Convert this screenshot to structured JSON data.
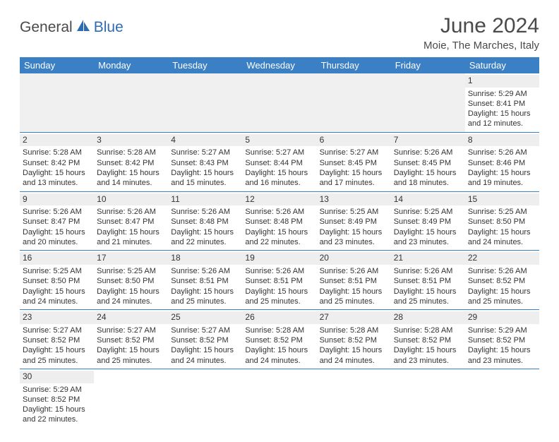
{
  "logo": {
    "general": "General",
    "blue": "Blue"
  },
  "title": "June 2024",
  "location": "Moie, The Marches, Italy",
  "colors": {
    "header_bg": "#3b7fc4",
    "header_text": "#ffffff",
    "daynum_bg": "#eeeeee",
    "border": "#3b7fc4",
    "text": "#333333",
    "logo_gray": "#4a4a4a",
    "logo_blue": "#2d6cb0"
  },
  "weekdays": [
    "Sunday",
    "Monday",
    "Tuesday",
    "Wednesday",
    "Thursday",
    "Friday",
    "Saturday"
  ],
  "weeks": [
    [
      null,
      null,
      null,
      null,
      null,
      null,
      {
        "n": "1",
        "sr": "5:29 AM",
        "ss": "8:41 PM",
        "dl": "15 hours and 12 minutes."
      }
    ],
    [
      {
        "n": "2",
        "sr": "5:28 AM",
        "ss": "8:42 PM",
        "dl": "15 hours and 13 minutes."
      },
      {
        "n": "3",
        "sr": "5:28 AM",
        "ss": "8:42 PM",
        "dl": "15 hours and 14 minutes."
      },
      {
        "n": "4",
        "sr": "5:27 AM",
        "ss": "8:43 PM",
        "dl": "15 hours and 15 minutes."
      },
      {
        "n": "5",
        "sr": "5:27 AM",
        "ss": "8:44 PM",
        "dl": "15 hours and 16 minutes."
      },
      {
        "n": "6",
        "sr": "5:27 AM",
        "ss": "8:45 PM",
        "dl": "15 hours and 17 minutes."
      },
      {
        "n": "7",
        "sr": "5:26 AM",
        "ss": "8:45 PM",
        "dl": "15 hours and 18 minutes."
      },
      {
        "n": "8",
        "sr": "5:26 AM",
        "ss": "8:46 PM",
        "dl": "15 hours and 19 minutes."
      }
    ],
    [
      {
        "n": "9",
        "sr": "5:26 AM",
        "ss": "8:47 PM",
        "dl": "15 hours and 20 minutes."
      },
      {
        "n": "10",
        "sr": "5:26 AM",
        "ss": "8:47 PM",
        "dl": "15 hours and 21 minutes."
      },
      {
        "n": "11",
        "sr": "5:26 AM",
        "ss": "8:48 PM",
        "dl": "15 hours and 22 minutes."
      },
      {
        "n": "12",
        "sr": "5:26 AM",
        "ss": "8:48 PM",
        "dl": "15 hours and 22 minutes."
      },
      {
        "n": "13",
        "sr": "5:25 AM",
        "ss": "8:49 PM",
        "dl": "15 hours and 23 minutes."
      },
      {
        "n": "14",
        "sr": "5:25 AM",
        "ss": "8:49 PM",
        "dl": "15 hours and 23 minutes."
      },
      {
        "n": "15",
        "sr": "5:25 AM",
        "ss": "8:50 PM",
        "dl": "15 hours and 24 minutes."
      }
    ],
    [
      {
        "n": "16",
        "sr": "5:25 AM",
        "ss": "8:50 PM",
        "dl": "15 hours and 24 minutes."
      },
      {
        "n": "17",
        "sr": "5:25 AM",
        "ss": "8:50 PM",
        "dl": "15 hours and 24 minutes."
      },
      {
        "n": "18",
        "sr": "5:26 AM",
        "ss": "8:51 PM",
        "dl": "15 hours and 25 minutes."
      },
      {
        "n": "19",
        "sr": "5:26 AM",
        "ss": "8:51 PM",
        "dl": "15 hours and 25 minutes."
      },
      {
        "n": "20",
        "sr": "5:26 AM",
        "ss": "8:51 PM",
        "dl": "15 hours and 25 minutes."
      },
      {
        "n": "21",
        "sr": "5:26 AM",
        "ss": "8:51 PM",
        "dl": "15 hours and 25 minutes."
      },
      {
        "n": "22",
        "sr": "5:26 AM",
        "ss": "8:52 PM",
        "dl": "15 hours and 25 minutes."
      }
    ],
    [
      {
        "n": "23",
        "sr": "5:27 AM",
        "ss": "8:52 PM",
        "dl": "15 hours and 25 minutes."
      },
      {
        "n": "24",
        "sr": "5:27 AM",
        "ss": "8:52 PM",
        "dl": "15 hours and 25 minutes."
      },
      {
        "n": "25",
        "sr": "5:27 AM",
        "ss": "8:52 PM",
        "dl": "15 hours and 24 minutes."
      },
      {
        "n": "26",
        "sr": "5:28 AM",
        "ss": "8:52 PM",
        "dl": "15 hours and 24 minutes."
      },
      {
        "n": "27",
        "sr": "5:28 AM",
        "ss": "8:52 PM",
        "dl": "15 hours and 24 minutes."
      },
      {
        "n": "28",
        "sr": "5:28 AM",
        "ss": "8:52 PM",
        "dl": "15 hours and 23 minutes."
      },
      {
        "n": "29",
        "sr": "5:29 AM",
        "ss": "8:52 PM",
        "dl": "15 hours and 23 minutes."
      }
    ],
    [
      {
        "n": "30",
        "sr": "5:29 AM",
        "ss": "8:52 PM",
        "dl": "15 hours and 22 minutes."
      },
      null,
      null,
      null,
      null,
      null,
      null
    ]
  ],
  "labels": {
    "sunrise": "Sunrise:",
    "sunset": "Sunset:",
    "daylight": "Daylight:"
  }
}
